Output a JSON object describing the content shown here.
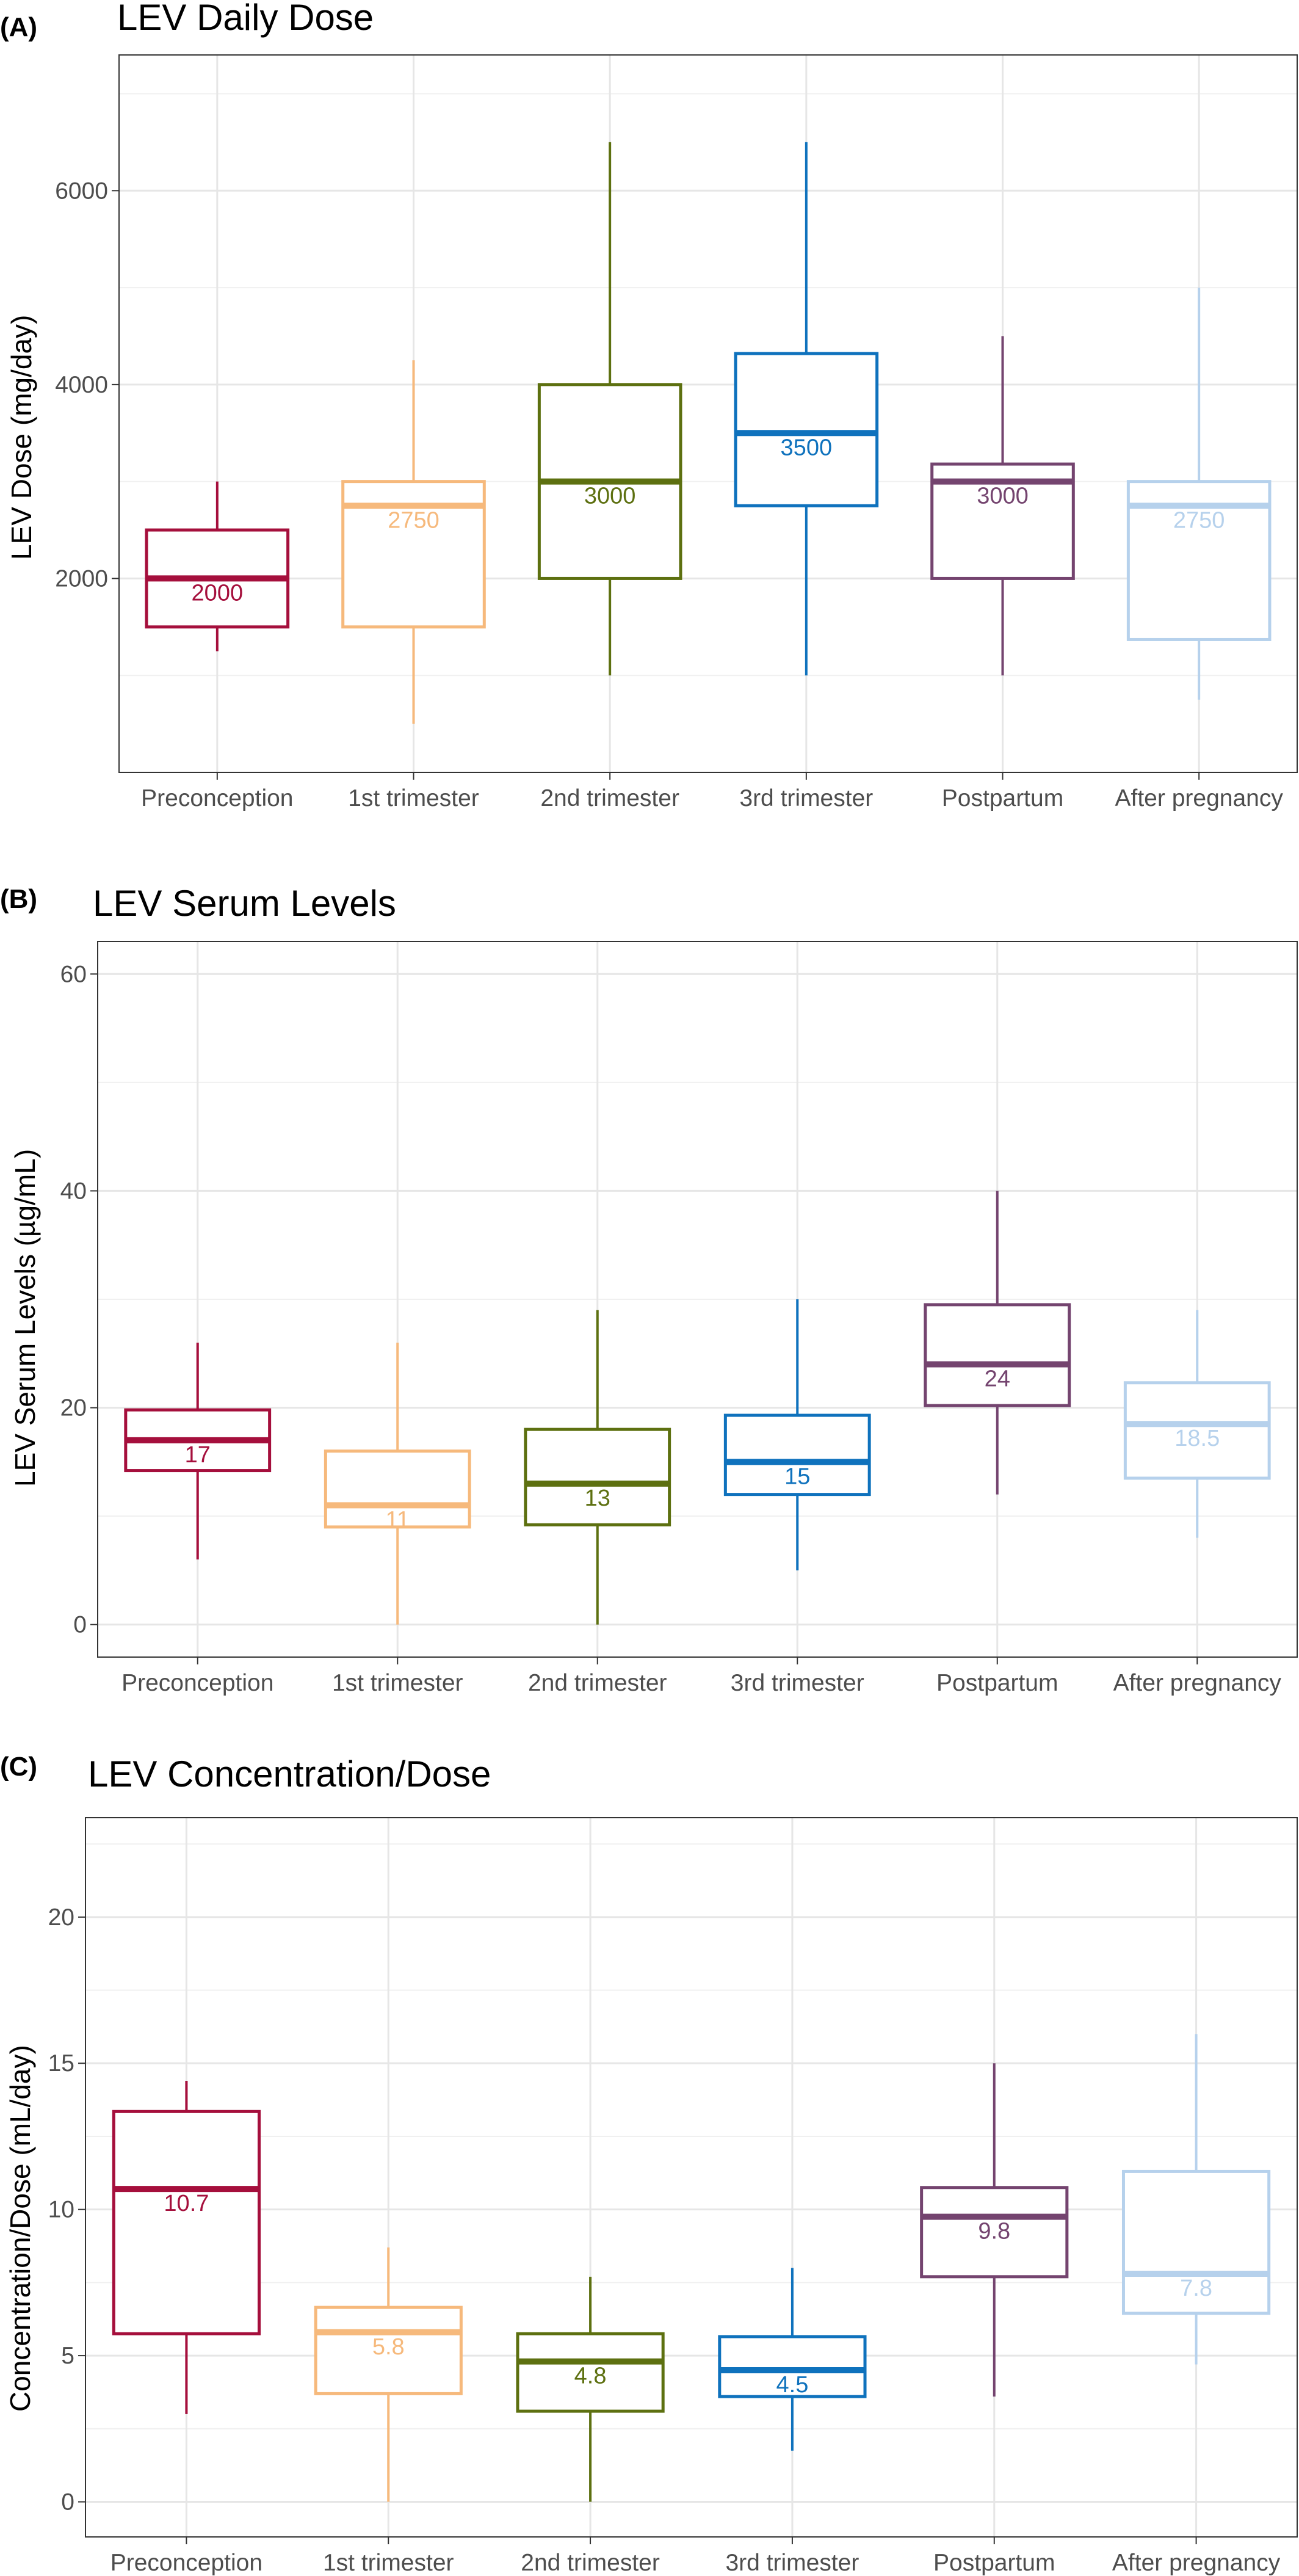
{
  "chart_data": [
    {
      "type": "box",
      "panel_label": "(A)",
      "title": "LEV Daily Dose",
      "xlabel": "",
      "ylabel": "LEV Dose (mg/day)",
      "ylim": [
        0,
        7400
      ],
      "yticks": [
        2000,
        4000,
        6000
      ],
      "grid": true,
      "categories": [
        "Preconception",
        "1st trimester",
        "2nd trimester",
        "3rd trimester",
        "Postpartum",
        "After pregnancy"
      ],
      "colors": [
        "#a50f3c",
        "#f6b97c",
        "#5d7010",
        "#0f72bd",
        "#74446f",
        "#b6d1ec"
      ],
      "boxes": [
        {
          "min": 1250,
          "q1": 1500,
          "median": 2000,
          "q3": 2500,
          "max": 3000,
          "label": "2000"
        },
        {
          "min": 500,
          "q1": 1500,
          "median": 2750,
          "q3": 3000,
          "max": 4250,
          "label": "2750"
        },
        {
          "min": 1000,
          "q1": 2000,
          "median": 3000,
          "q3": 4000,
          "max": 6500,
          "label": "3000"
        },
        {
          "min": 1000,
          "q1": 2750,
          "median": 3500,
          "q3": 4320,
          "max": 6500,
          "label": "3500"
        },
        {
          "min": 1000,
          "q1": 2000,
          "median": 3000,
          "q3": 3180,
          "max": 4500,
          "label": "3000"
        },
        {
          "min": 750,
          "q1": 1370,
          "median": 2750,
          "q3": 3000,
          "max": 5000,
          "label": "2750"
        }
      ]
    },
    {
      "type": "box",
      "panel_label": "(B)",
      "title": "LEV Serum Levels",
      "xlabel": "",
      "ylabel": "LEV Serum Levels (µg/mL)",
      "ylim": [
        -3,
        63
      ],
      "yticks": [
        0,
        20,
        40,
        60
      ],
      "grid": true,
      "categories": [
        "Preconception",
        "1st trimester",
        "2nd trimester",
        "3rd trimester",
        "Postpartum",
        "After pregnancy"
      ],
      "colors": [
        "#a50f3c",
        "#f6b97c",
        "#5d7010",
        "#0f72bd",
        "#74446f",
        "#b6d1ec"
      ],
      "boxes": [
        {
          "min": 6,
          "q1": 14.2,
          "median": 17,
          "q3": 19.8,
          "max": 26,
          "label": "17"
        },
        {
          "min": 0,
          "q1": 9,
          "median": 11,
          "q3": 16,
          "max": 26,
          "label": "11"
        },
        {
          "min": 0,
          "q1": 9.2,
          "median": 13,
          "q3": 18,
          "max": 29,
          "label": "13"
        },
        {
          "min": 5,
          "q1": 12,
          "median": 15,
          "q3": 19.3,
          "max": 30,
          "label": "15"
        },
        {
          "min": 12,
          "q1": 20.2,
          "median": 24,
          "q3": 29.5,
          "max": 40,
          "label": "24"
        },
        {
          "min": 8,
          "q1": 13.5,
          "median": 18.5,
          "q3": 22.3,
          "max": 29,
          "label": "18.5"
        }
      ]
    },
    {
      "type": "box",
      "panel_label": "(C)",
      "title": "LEV Concentration/Dose",
      "xlabel": "",
      "ylabel": "Concentration/Dose (mL/day)",
      "ylim": [
        -1.2,
        23.4
      ],
      "yticks": [
        0,
        5,
        10,
        15,
        20
      ],
      "grid": true,
      "categories": [
        "Preconception",
        "1st trimester",
        "2nd trimester",
        "3rd trimester",
        "Postpartum",
        "After pregnancy"
      ],
      "colors": [
        "#a50f3c",
        "#f6b97c",
        "#5d7010",
        "#0f72bd",
        "#74446f",
        "#b6d1ec"
      ],
      "boxes": [
        {
          "min": 3,
          "q1": 5.75,
          "median": 10.7,
          "q3": 13.35,
          "max": 14.4,
          "label": "10.7"
        },
        {
          "min": 0,
          "q1": 3.7,
          "median": 5.8,
          "q3": 6.65,
          "max": 8.7,
          "label": "5.8"
        },
        {
          "min": 0,
          "q1": 3.1,
          "median": 4.8,
          "q3": 5.75,
          "max": 7.7,
          "label": "4.8"
        },
        {
          "min": 1.75,
          "q1": 3.6,
          "median": 4.5,
          "q3": 5.65,
          "max": 8,
          "label": "4.5"
        },
        {
          "min": 3.6,
          "q1": 7.7,
          "median": 9.75,
          "q3": 10.75,
          "max": 15,
          "label": "9.8"
        },
        {
          "min": 4.7,
          "q1": 6.45,
          "median": 7.8,
          "q3": 11.3,
          "max": 16,
          "label": "7.8"
        }
      ]
    }
  ]
}
